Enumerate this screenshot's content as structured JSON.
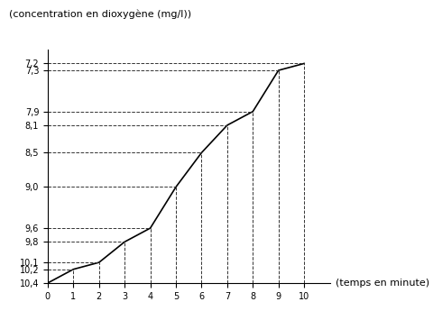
{
  "chart_data": {
    "type": "line",
    "x_label": "(temps en minute)",
    "y_label": "(concentration en dioxygène (mg/l))",
    "x": [
      0,
      1,
      2,
      3,
      4,
      5,
      6,
      7,
      8,
      9,
      10
    ],
    "values": [
      10.4,
      10.2,
      10.1,
      9.8,
      9.6,
      9.0,
      8.5,
      8.1,
      7.9,
      7.3,
      7.2
    ],
    "color": "#000000",
    "line_style": "solid",
    "xlim": [
      0,
      11
    ],
    "xticks": [
      0,
      1,
      2,
      3,
      4,
      5,
      6,
      7,
      8,
      9,
      10
    ],
    "ylim": [
      10.4,
      7.0
    ],
    "yticks": [
      {
        "value": 10.4,
        "label": "10,4"
      },
      {
        "value": 10.2,
        "label": "10,2"
      },
      {
        "value": 10.1,
        "label": "10,1"
      },
      {
        "value": 9.8,
        "label": "9,8"
      },
      {
        "value": 9.6,
        "label": "9,6"
      },
      {
        "value": 9.0,
        "label": "9,0"
      },
      {
        "value": 8.5,
        "label": "8,5"
      },
      {
        "value": 8.1,
        "label": "8,1"
      },
      {
        "value": 7.9,
        "label": "7,9"
      },
      {
        "value": 7.3,
        "label": "7,3"
      },
      {
        "value": 7.2,
        "label": "7,2"
      }
    ],
    "grid": false
  }
}
